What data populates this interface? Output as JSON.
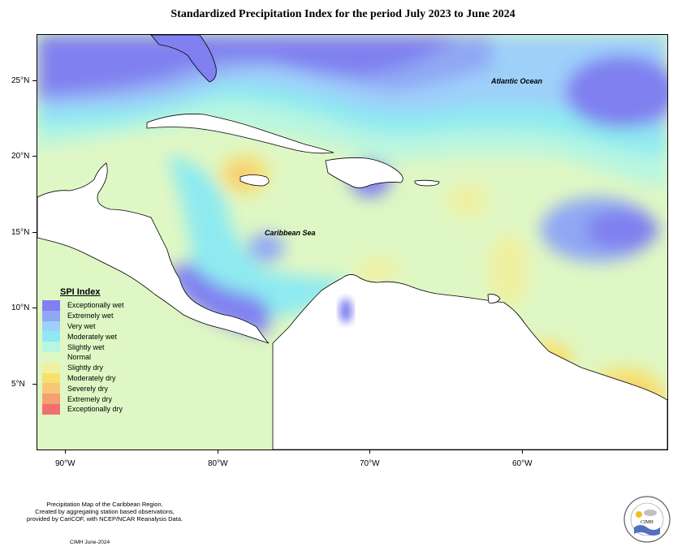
{
  "title": "Standardized Precipitation Index for the period July 2023 to June 2024",
  "latitude_labels": [
    "25°N",
    "20°N",
    "15°N",
    "10°N",
    "5°N"
  ],
  "longitude_labels": [
    "90°W",
    "80°W",
    "70°W",
    "60°W"
  ],
  "ocean_labels": {
    "atlantic": "Atlantic Ocean",
    "caribbean": "Caribbean Sea"
  },
  "legend": {
    "title": "SPI Index",
    "items": [
      {
        "label": "Exceptionally wet",
        "color": "#8080f0"
      },
      {
        "label": "Extremely wet",
        "color": "#90a8f4"
      },
      {
        "label": "Very wet",
        "color": "#9ed0fa"
      },
      {
        "label": "Moderately wet",
        "color": "#8eeaf0"
      },
      {
        "label": "Slightly wet",
        "color": "#b8f6e0"
      },
      {
        "label": "Normal",
        "color": "#dff7c4"
      },
      {
        "label": "Slightly dry",
        "color": "#f0f0a0"
      },
      {
        "label": "Moderately dry",
        "color": "#f8e070"
      },
      {
        "label": "Severely dry",
        "color": "#f8c878"
      },
      {
        "label": "Extremely dry",
        "color": "#f4a070"
      },
      {
        "label": "Exceptionally dry",
        "color": "#f07070"
      }
    ]
  },
  "footer": {
    "line1": "Precipitation Map of the Caribbean Region.",
    "line2": "Created by aggregating station based observations,",
    "line3": "provided by CariCOF, with NCEP/NCAR Reanalysis Data.",
    "credit": "CIMH June-2024",
    "logo_text": "CIMH"
  }
}
